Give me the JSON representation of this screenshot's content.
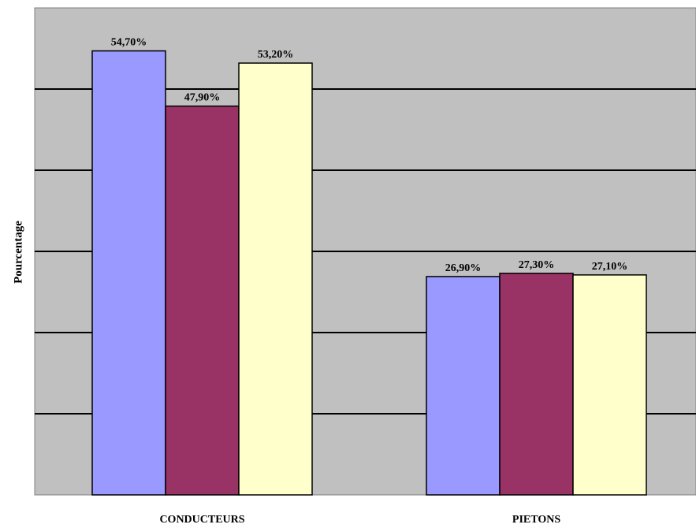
{
  "chart_data": {
    "type": "bar",
    "categories": [
      "CONDUCTEURS",
      "PIETONS"
    ],
    "series": [
      {
        "values": [
          54.7,
          26.9
        ],
        "labels": [
          "54,70%",
          "26,90%"
        ],
        "color": "#9999FF"
      },
      {
        "values": [
          47.9,
          27.3
        ],
        "labels": [
          "47,90%",
          "27,30%"
        ],
        "color": "#993366"
      },
      {
        "values": [
          53.2,
          27.1
        ],
        "labels": [
          "53,20%",
          "27,10%"
        ],
        "color": "#FFFFCC"
      }
    ],
    "ylabel": "Pourcentage",
    "ylim": [
      0,
      60
    ],
    "gridlines": [
      10,
      20,
      30,
      40,
      50
    ],
    "plot_background": "#C0C0C0",
    "grid": true
  }
}
